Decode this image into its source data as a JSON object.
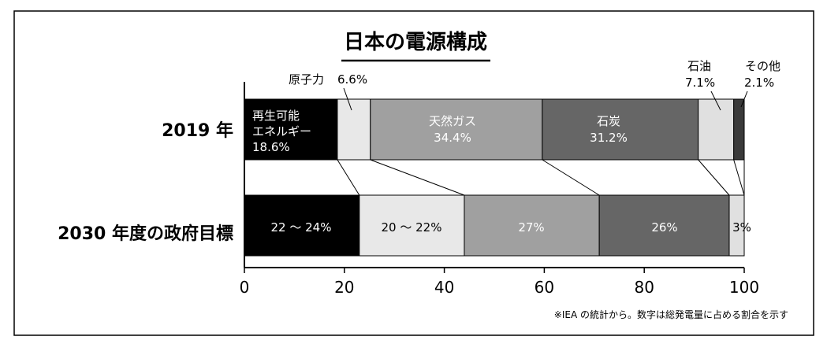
{
  "chart_data": {
    "type": "bar",
    "title": "日本の電源構成",
    "xlim": [
      0,
      100
    ],
    "x_ticks": [
      "0",
      "20",
      "40",
      "60",
      "80",
      "100"
    ],
    "categories": [
      "2019 年",
      "2030 年度の政府目標"
    ],
    "series": [
      {
        "name": "再生可能エネルギー",
        "color": "#000000",
        "values": [
          18.6,
          23
        ]
      },
      {
        "name": "原子力",
        "color": "#e8e8e8",
        "values": [
          6.6,
          21
        ]
      },
      {
        "name": "天然ガス",
        "color": "#a0a0a0",
        "values": [
          34.4,
          27
        ]
      },
      {
        "name": "石炭",
        "color": "#666666",
        "values": [
          31.2,
          26
        ]
      },
      {
        "name": "石油",
        "color": "#e0e0e0",
        "values": [
          7.1,
          3
        ]
      },
      {
        "name": "その他",
        "color": "#3a3a3a",
        "values": [
          2.1,
          0
        ]
      }
    ],
    "labels_2019": {
      "renewable_line1": "再生可能",
      "renewable_line2": "エネルギー",
      "renewable_pct": "18.6%",
      "nuclear": "原子力",
      "nuclear_pct": "6.6%",
      "gas_name": "天然ガス",
      "gas_pct": "34.4%",
      "coal_name": "石炭",
      "coal_pct": "31.2%",
      "oil_name": "石油",
      "oil_pct": "7.1%",
      "other_name": "その他",
      "other_pct": "2.1%"
    },
    "labels_2030": {
      "renewable": "22 ～ 24%",
      "nuclear": "20 ～ 22%",
      "gas": "27%",
      "coal": "26%",
      "oil": "3%"
    },
    "note": "※IEA の統計から。数字は総発電量に占める割合を示す"
  }
}
